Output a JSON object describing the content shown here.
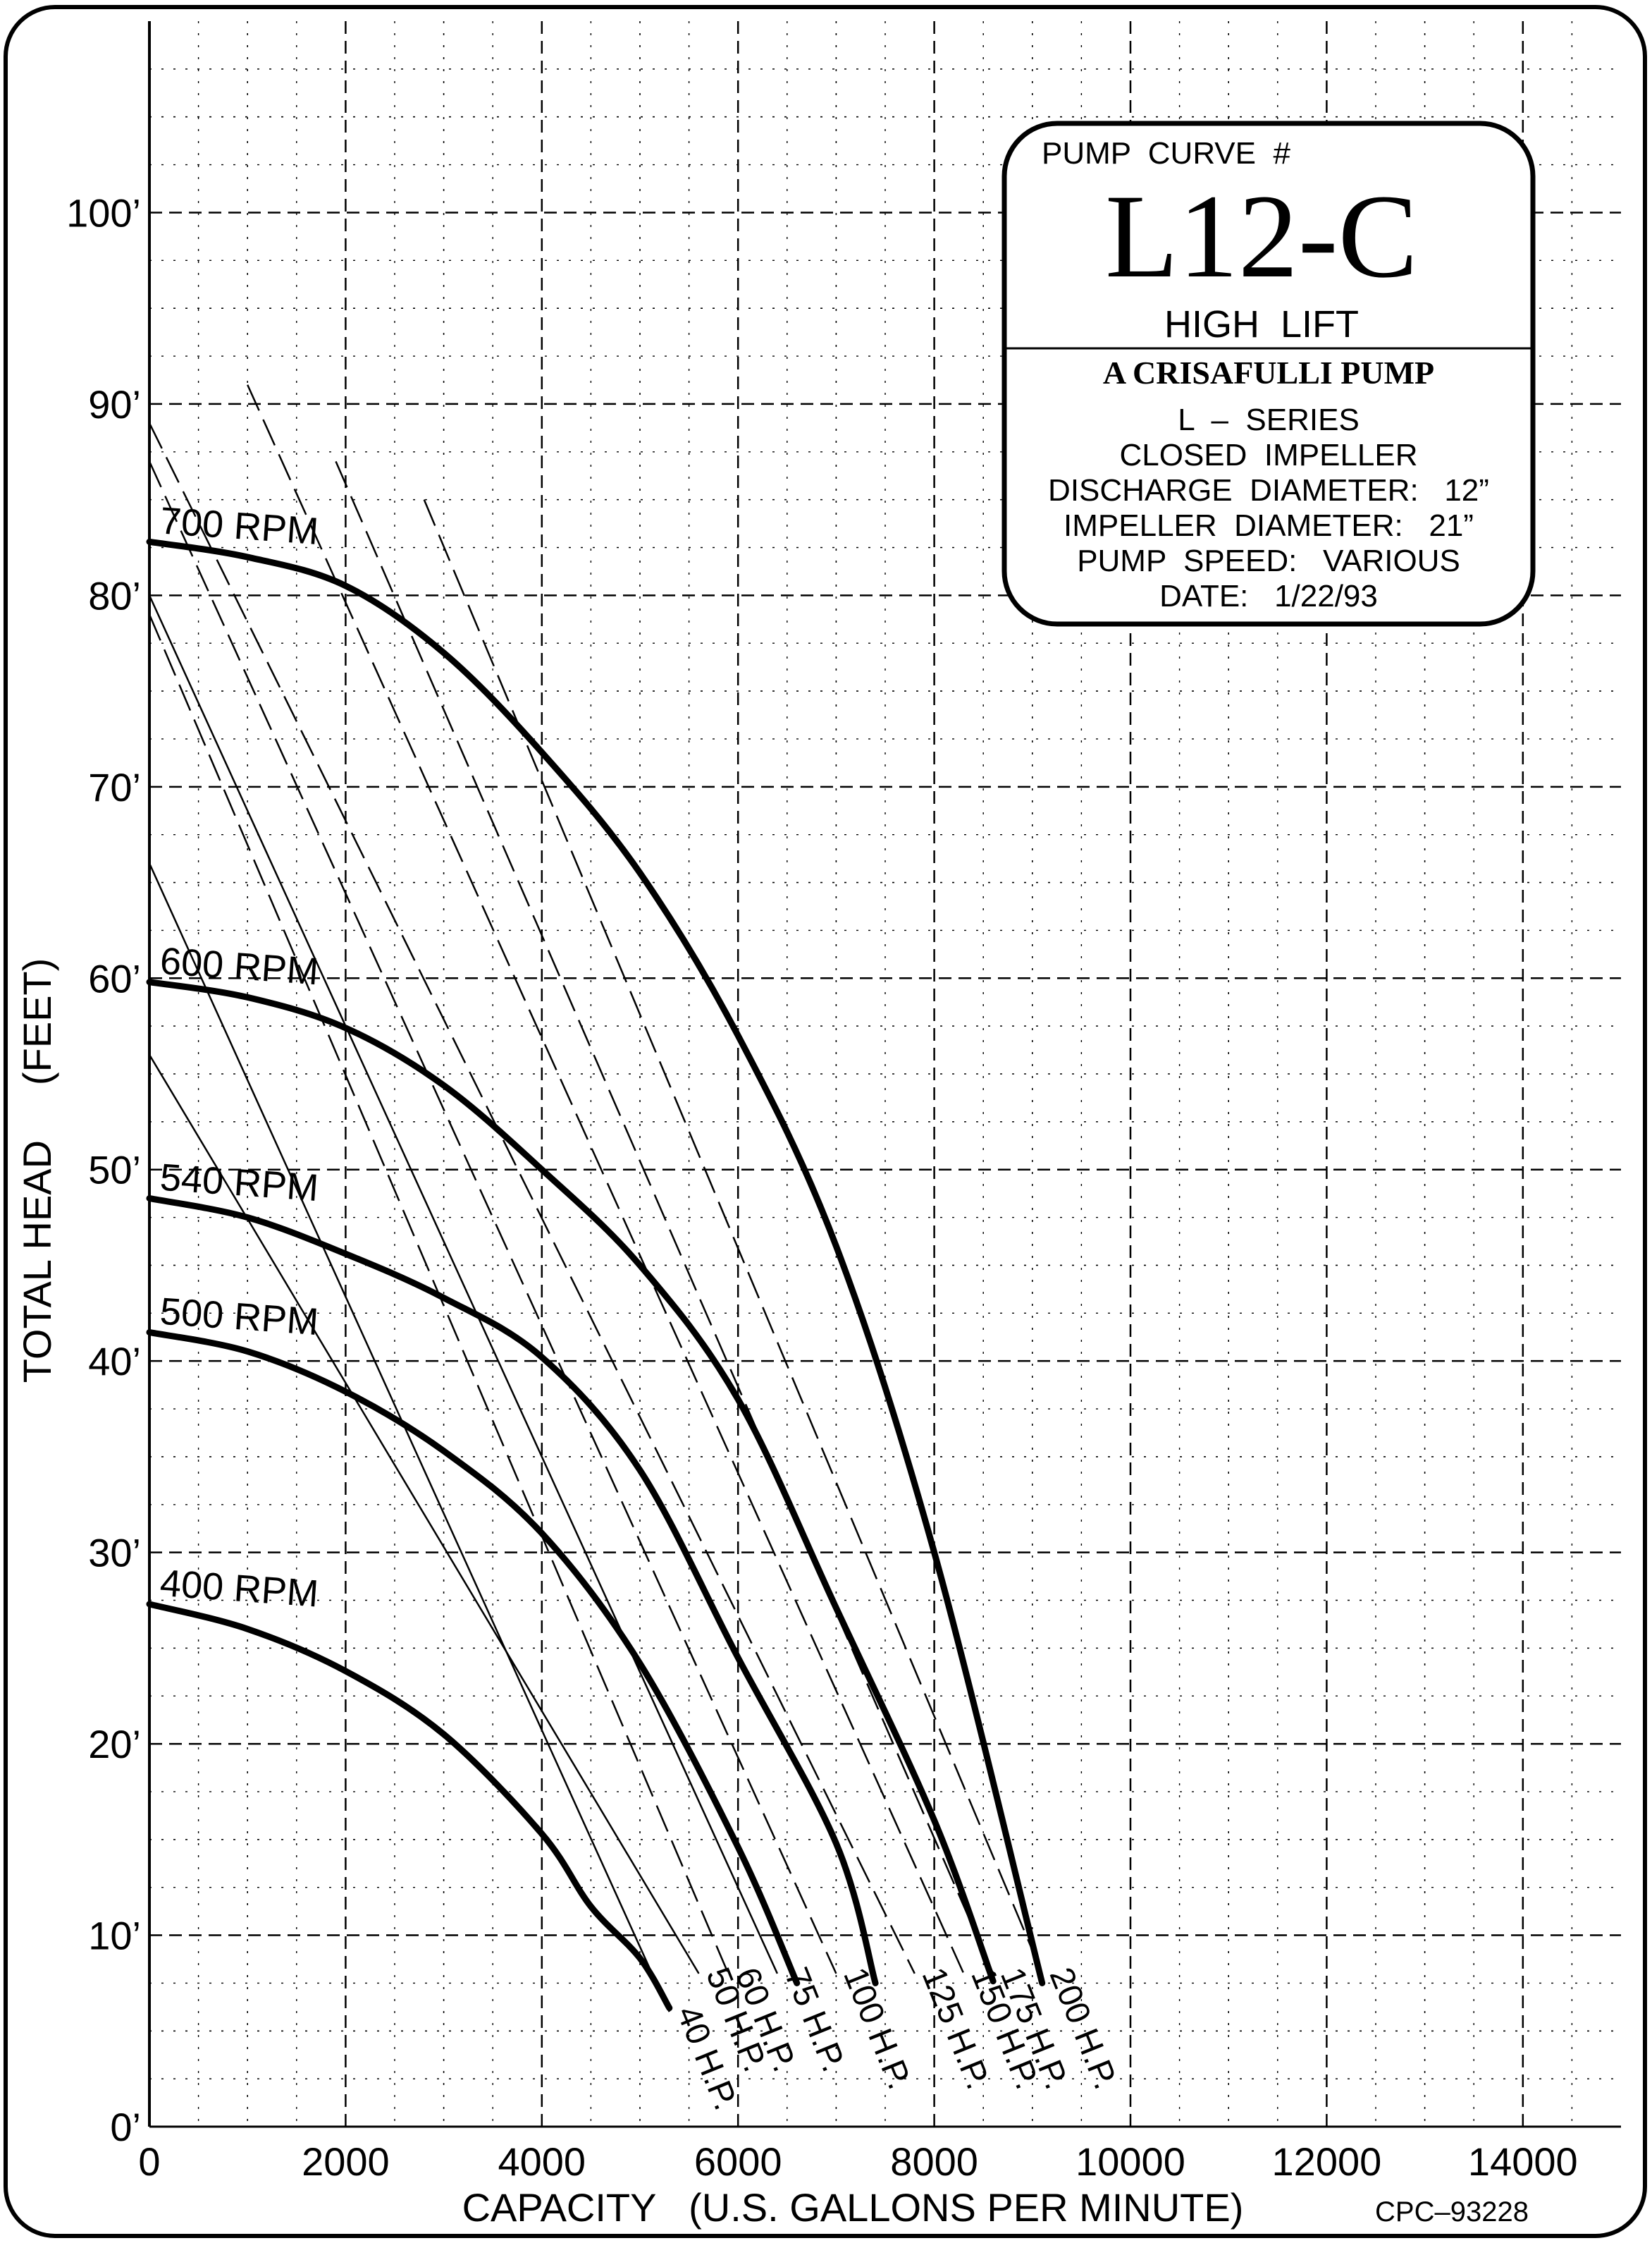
{
  "chart_data": {
    "type": "line",
    "xlabel": "CAPACITY   (U.S. GALLONS PER MINUTE)",
    "ylabel": "TOTAL HEAD     (FEET)",
    "xlim": [
      0,
      15000
    ],
    "ylim": [
      0,
      110
    ],
    "x_ticks": [
      "0",
      "2000",
      "4000",
      "6000",
      "8000",
      "10000",
      "12000",
      "14000"
    ],
    "y_ticks": [
      "0’",
      "10’",
      "20’",
      "30’",
      "40’",
      "50’",
      "60’",
      "70’",
      "80’",
      "90’",
      "100’"
    ],
    "grid": true,
    "series": [
      {
        "name": "400  RPM",
        "x": [
          0,
          1000,
          2000,
          3000,
          4000,
          4500,
          5000,
          5300
        ],
        "y": [
          27.3,
          26,
          23.8,
          20.5,
          15.3,
          11.5,
          8.8,
          6.2
        ]
      },
      {
        "name": "500  RPM",
        "x": [
          0,
          1000,
          2000,
          3000,
          4000,
          5000,
          6000,
          6600
        ],
        "y": [
          41.5,
          40.5,
          38.4,
          35.3,
          31,
          24.2,
          14.6,
          7.5
        ]
      },
      {
        "name": "540  RPM",
        "x": [
          0,
          1000,
          2000,
          3000,
          4000,
          5000,
          6000,
          7000,
          7400
        ],
        "y": [
          48.5,
          47.5,
          45.6,
          43.3,
          40.2,
          34.3,
          24.5,
          14.8,
          7.5
        ]
      },
      {
        "name": "600  RPM",
        "x": [
          0,
          1000,
          2000,
          3000,
          4000,
          5000,
          6000,
          7000,
          8000,
          8600
        ],
        "y": [
          59.8,
          59,
          57.4,
          54.4,
          50,
          45,
          38,
          27.1,
          16,
          7.6
        ]
      },
      {
        "name": "700  RPM",
        "x": [
          0,
          1000,
          2000,
          3000,
          4000,
          5000,
          6000,
          7000,
          8000,
          9100
        ],
        "y": [
          82.8,
          82,
          80.5,
          77,
          71.8,
          65.5,
          57,
          46,
          30,
          7.5
        ]
      }
    ],
    "hp_lines": [
      {
        "label": "40  H.P.",
        "x": [
          0,
          5300
        ],
        "y": [
          66,
          6
        ],
        "style": "solid"
      },
      {
        "label": "50  H.P.",
        "x": [
          0,
          5600
        ],
        "y": [
          56,
          8
        ],
        "style": "solid"
      },
      {
        "label": "60  H.P.",
        "x": [
          0,
          5900
        ],
        "y": [
          79,
          8
        ],
        "style": "dashed"
      },
      {
        "label": "75  H.P.",
        "x": [
          0,
          6400
        ],
        "y": [
          80,
          8
        ],
        "style": "solid"
      },
      {
        "label": "100  H.P.",
        "x": [
          0,
          7000
        ],
        "y": [
          87,
          8
        ],
        "style": "dashed"
      },
      {
        "label": "125  H.P.",
        "x": [
          0,
          7800
        ],
        "y": [
          89,
          8
        ],
        "style": "dashed"
      },
      {
        "label": "150  H.P.",
        "x": [
          1000,
          8300
        ],
        "y": [
          91,
          8
        ],
        "style": "dashed"
      },
      {
        "label": "175  H.P.",
        "x": [
          1900,
          8600
        ],
        "y": [
          87,
          8
        ],
        "style": "dashed"
      },
      {
        "label": "200  H.P.",
        "x": [
          2800,
          9100
        ],
        "y": [
          85,
          8
        ],
        "style": "dashed"
      }
    ],
    "legend": "none"
  },
  "info_box": {
    "header": "PUMP  CURVE  #",
    "model": "L12-C",
    "subtitle": "HIGH  LIFT",
    "brand": "A CRISAFULLI PUMP",
    "lines": [
      "L  –  SERIES",
      "CLOSED  IMPELLER",
      "DISCHARGE  DIAMETER:   12”",
      "IMPELLER  DIAMETER:   21”",
      "PUMP  SPEED:   VARIOUS",
      "DATE:   1/22/93"
    ]
  },
  "drawing_code": "CPC–93228"
}
